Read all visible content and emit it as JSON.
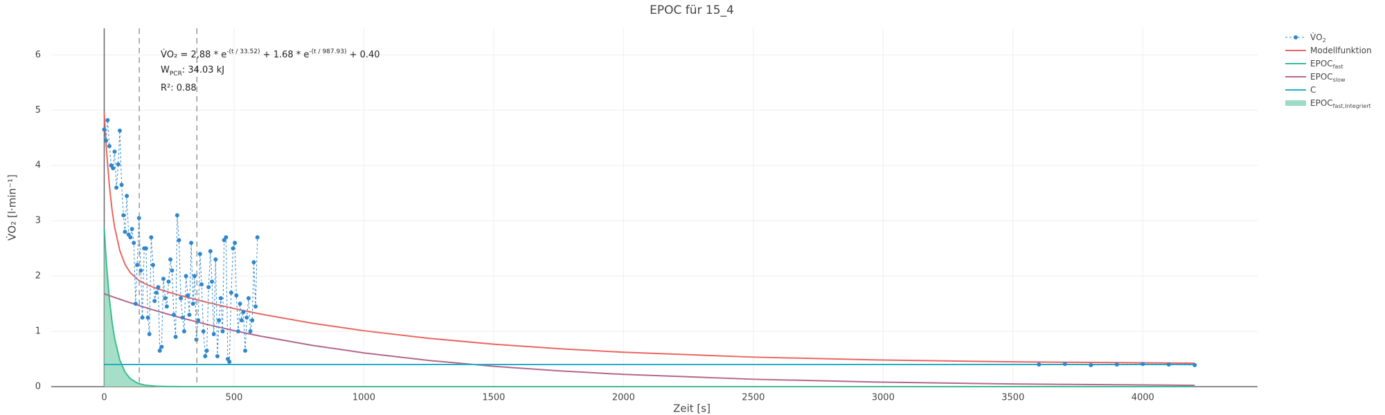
{
  "chart_data": {
    "type": "line",
    "title": "EPOC für 15_4",
    "x_label": "Zeit [s]",
    "y_label": "V̇O₂ [l·min⁻¹]",
    "xlim": [
      -204,
      4442
    ],
    "ylim": [
      0,
      6.48
    ],
    "xticks": [
      0,
      500,
      1000,
      1500,
      2000,
      2500,
      3000,
      3500,
      4000
    ],
    "yticks": [
      0,
      1,
      2,
      3,
      4,
      5,
      6
    ],
    "grid": true,
    "legend": "top-right",
    "vlines": [
      135,
      357
    ],
    "annotations": [
      [
        {
          "text": "V̇O₂ = 2,88 * e"
        },
        {
          "text": "-(t / 33.52)",
          "sup": true
        },
        {
          "text": " + 1.68 * e"
        },
        {
          "text": "-(t / 987.93)",
          "sup": true
        },
        {
          "text": " + 0.40"
        }
      ],
      [
        {
          "text": "W"
        },
        {
          "text": "PCR",
          "sub": true
        },
        {
          "text": ": 34.03 kJ"
        }
      ],
      [
        {
          "text": "R²: 0.88"
        }
      ]
    ],
    "x": [
      0,
      5,
      10,
      20,
      30,
      40,
      60,
      80,
      100,
      130,
      160,
      200,
      250,
      300,
      400,
      500,
      600,
      800,
      1000,
      1250,
      1500,
      1750,
      2000,
      2500,
      3000,
      3500,
      4200
    ],
    "series": [
      {
        "name": "V̇O",
        "subscript": "2",
        "kind": "markers-dashed",
        "color": "#2f87cc",
        "x": [
          0,
          7,
          13,
          20,
          27,
          34,
          40,
          47,
          54,
          60,
          67,
          74,
          80,
          87,
          94,
          101,
          107,
          114,
          121,
          127,
          134,
          141,
          147,
          154,
          161,
          168,
          174,
          181,
          188,
          194,
          201,
          208,
          214,
          221,
          228,
          235,
          241,
          248,
          255,
          261,
          268,
          275,
          281,
          288,
          295,
          302,
          308,
          315,
          322,
          328,
          335,
          342,
          348,
          355,
          362,
          369,
          375,
          382,
          389,
          395,
          402,
          409,
          415,
          422,
          429,
          436,
          442,
          449,
          456,
          462,
          469,
          476,
          482,
          489,
          496,
          503,
          509,
          516,
          523,
          529,
          536,
          543,
          549,
          556,
          563,
          570,
          576,
          583,
          590,
          2000,
          3600,
          3700,
          3800,
          3900,
          4000,
          4100,
          4200
        ],
        "values": [
          4.65,
          4.45,
          4.82,
          4.35,
          4.0,
          3.95,
          4.25,
          3.6,
          4.02,
          4.63,
          3.65,
          3.1,
          2.8,
          3.45,
          2.75,
          2.7,
          2.85,
          2.6,
          1.5,
          2.2,
          3.05,
          2.1,
          1.25,
          2.5,
          2.5,
          1.25,
          0.95,
          2.7,
          2.2,
          1.55,
          1.7,
          1.8,
          0.65,
          0.72,
          1.95,
          1.6,
          1.45,
          1.9,
          2.3,
          2.1,
          1.3,
          0.9,
          3.1,
          2.65,
          1.6,
          1.25,
          1.0,
          2.0,
          1.65,
          1.3,
          2.6,
          1.5,
          2.0,
          0.85,
          1.2,
          2.4,
          1.85,
          1.0,
          0.55,
          0.65,
          1.8,
          2.45,
          1.9,
          0.95,
          2.3,
          0.55,
          1.2,
          1.6,
          1.0,
          2.65,
          2.7,
          0.5,
          0.45,
          1.7,
          2.5,
          2.6,
          1.65,
          1.0,
          1.5,
          1.2,
          1.35,
          0.65,
          1.25,
          1.6,
          1.0,
          1.2,
          2.25,
          1.45,
          2.7,
          null,
          0.4,
          0.41,
          0.39,
          0.4,
          0.41,
          0.4,
          0.39
        ]
      },
      {
        "name": "Modellfunktion",
        "kind": "line",
        "color": "#ea6560",
        "values": [
          4.96,
          4.552,
          4.2,
          3.632,
          3.206,
          2.887,
          2.462,
          2.214,
          2.064,
          1.932,
          1.853,
          1.779,
          1.706,
          1.64,
          1.521,
          1.413,
          1.315,
          1.148,
          1.011,
          0.874,
          0.768,
          0.686,
          0.622,
          0.534,
          0.481,
          0.449,
          0.424
        ]
      },
      {
        "name": "EPOC",
        "subscript": "fast",
        "kind": "line",
        "color": "#39bd8c",
        "values": [
          2.88,
          2.481,
          2.137,
          1.586,
          1.177,
          0.873,
          0.481,
          0.265,
          0.146,
          0.0596,
          0.0243,
          0.0074,
          0.0017,
          0.0004,
          0,
          0,
          0,
          0,
          0,
          0,
          0,
          0,
          0,
          0,
          0,
          0,
          0
        ]
      },
      {
        "name": "EPOC",
        "subscript": "slow",
        "kind": "line",
        "color": "#b3668c",
        "values": [
          1.68,
          1.6715,
          1.6631,
          1.6463,
          1.6298,
          1.6133,
          1.581,
          1.5493,
          1.5182,
          1.4729,
          1.4289,
          1.372,
          1.3044,
          1.24,
          1.1207,
          1.0129,
          0.9153,
          0.7475,
          0.6105,
          0.4741,
          0.3681,
          0.2858,
          0.2219,
          0.1337,
          0.0806,
          0.0486,
          0.0239
        ]
      },
      {
        "name": "C",
        "kind": "line",
        "color": "#22afc6",
        "values": [
          0.4,
          0.4,
          0.4,
          0.4,
          0.4,
          0.4,
          0.4,
          0.4,
          0.4,
          0.4,
          0.4,
          0.4,
          0.4,
          0.4,
          0.4,
          0.4,
          0.4,
          0.4,
          0.4,
          0.4,
          0.4,
          0.4,
          0.4,
          0.4,
          0.4,
          0.4,
          0.4
        ]
      },
      {
        "name": "EPOC",
        "subscript": "fast,Integriert",
        "kind": "area",
        "color": "#9cdcc3",
        "values": [
          2.88,
          2.481,
          2.137,
          1.586,
          1.177,
          0.873,
          0.481,
          0.265,
          0.146,
          0.0596,
          0.0243,
          0.0074,
          0.0017,
          0.0004,
          null,
          null,
          null,
          null,
          null,
          null,
          null,
          null,
          null,
          null,
          null,
          null,
          null
        ]
      }
    ]
  }
}
